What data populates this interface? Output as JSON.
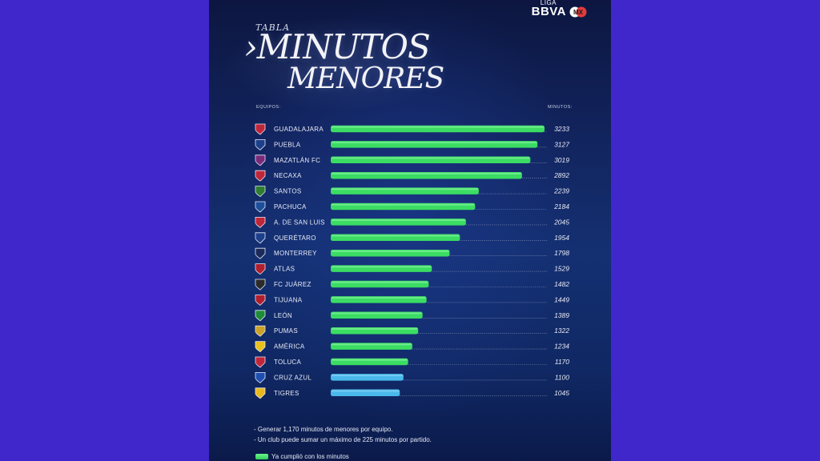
{
  "brand": {
    "liga": "LIGA",
    "name": "BBVA"
  },
  "title": {
    "small": "TABLA",
    "line1": "MINUTOS",
    "line2": "MENORES"
  },
  "headers": {
    "teams": "EQUIPOS:",
    "minutes": "MINUTOS:"
  },
  "chart_data": {
    "type": "bar",
    "orientation": "horizontal",
    "xlim": [
      0,
      3233
    ],
    "categories": [
      "GUADALAJARA",
      "PUEBLA",
      "MAZATLÁN FC",
      "NECAXA",
      "SANTOS",
      "PACHUCA",
      "A. DE SAN LUIS",
      "QUERÉTARO",
      "MONTERREY",
      "ATLAS",
      "FC JUÁREZ",
      "TIJUANA",
      "LEÓN",
      "PUMAS",
      "AMÉRICA",
      "TOLUCA",
      "CRUZ AZUL",
      "TIGRES"
    ],
    "values": [
      3233,
      3127,
      3019,
      2892,
      2239,
      2184,
      2045,
      1954,
      1798,
      1529,
      1482,
      1449,
      1389,
      1322,
      1234,
      1170,
      1100,
      1045
    ],
    "value_labels": [
      "3233",
      "3127",
      "3019",
      "2892",
      "2239",
      "2184",
      "2045",
      "1954",
      "1798",
      "1529",
      "1482",
      "1449",
      "1389",
      "1322",
      "1234",
      "1170",
      "1100",
      "1045"
    ],
    "completed": [
      true,
      true,
      true,
      true,
      true,
      true,
      true,
      true,
      true,
      true,
      true,
      true,
      true,
      true,
      true,
      true,
      false,
      false
    ],
    "colors": {
      "completed": "#3bdc63",
      "pending": "#4ab8ea",
      "dots": "#9aa6c8",
      "text": "#e8ebf6"
    },
    "badge_colors": [
      "#c0263a",
      "#1c3f8c",
      "#7a2a7a",
      "#c0263a",
      "#2e7d32",
      "#1d4f9c",
      "#c0263a",
      "#1d3f8c",
      "#1a2a5a",
      "#b01f2f",
      "#2b2b2b",
      "#b01f2f",
      "#1f8c3a",
      "#c9a227",
      "#e8c21c",
      "#c0263a",
      "#1d4fb0",
      "#e8b81c"
    ]
  },
  "notes": [
    "- Generar 1,170 minutos de menores por equipo.",
    "- Un club puede sumar un máximo de 225 minutos por partido."
  ],
  "legend": {
    "label": "Ya cumplió con los minutos",
    "color": "#3bdc63"
  }
}
